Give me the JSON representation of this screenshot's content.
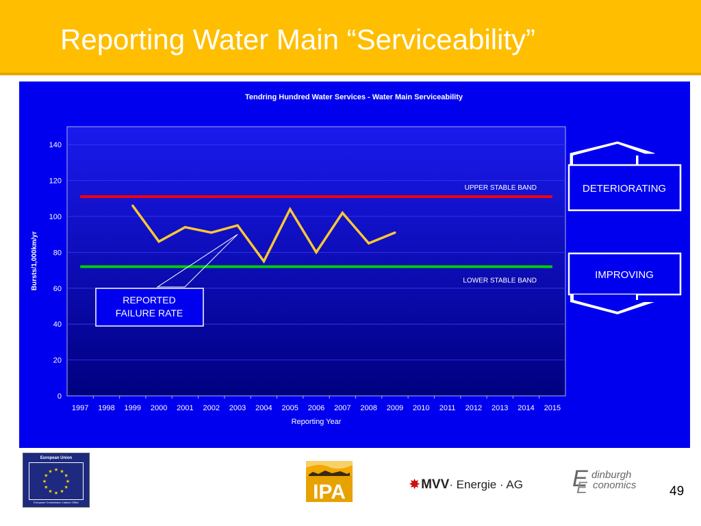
{
  "slide": {
    "title": "Reporting Water Main “Serviceability”",
    "page_number": "49",
    "colors": {
      "title_bar": "#FFBE00",
      "panel": "#0000EE",
      "plot_top": "#1A1AEE",
      "plot_bottom": "#000080",
      "series": "#FFC832",
      "upper_band": "#FF0000",
      "lower_band": "#00D000"
    }
  },
  "chart_data": {
    "type": "line",
    "title": "Tendring Hundred Water Services - Water Main Serviceability",
    "xlabel": "Reporting Year",
    "ylabel": "Bursts/1,000km/yr",
    "categories": [
      "1997",
      "1998",
      "1999",
      "2000",
      "2001",
      "2002",
      "2003",
      "2004",
      "2005",
      "2006",
      "2007",
      "2008",
      "2009",
      "2010",
      "2011",
      "2012",
      "2013",
      "2014",
      "2015"
    ],
    "series": [
      {
        "name": "",
        "x": [
          "1999",
          "2000",
          "2001",
          "2002",
          "2003",
          "2004",
          "2005",
          "2006",
          "2007",
          "2008",
          "2009"
        ],
        "values": [
          106,
          86,
          94,
          91,
          95,
          75,
          104,
          80,
          102,
          85,
          91
        ]
      }
    ],
    "reference_lines": [
      {
        "label": "UPPER STABLE BAND",
        "value": 111,
        "color": "#FF0000"
      },
      {
        "label": "LOWER STABLE BAND",
        "value": 72,
        "color": "#00D000"
      }
    ],
    "ylim": [
      0,
      150
    ],
    "y_ticks": [
      0,
      20,
      40,
      60,
      80,
      100,
      120,
      140
    ],
    "grid": true,
    "annotation": {
      "text_lines": [
        "REPORTED",
        "FAILURE RATE"
      ],
      "points_to": {
        "x": "2003",
        "y": 90
      }
    },
    "side_indicators": [
      {
        "label": "DETERIORATING",
        "arrow": "up"
      },
      {
        "label": "IMPROVING",
        "arrow": "down"
      }
    ]
  },
  "footer": {
    "eu_logo": {
      "title": "European Union",
      "subtitle": "European Commission Liaison Office"
    },
    "ipa_logo": {
      "text": "IPA"
    },
    "mvv_logo": {
      "brand": "MVV",
      "rest": "· Energie · AG",
      "star": "✸"
    },
    "edinburgh_logo": {
      "line1": "dinburgh",
      "line2": "conomics",
      "monogram": "EE"
    }
  }
}
